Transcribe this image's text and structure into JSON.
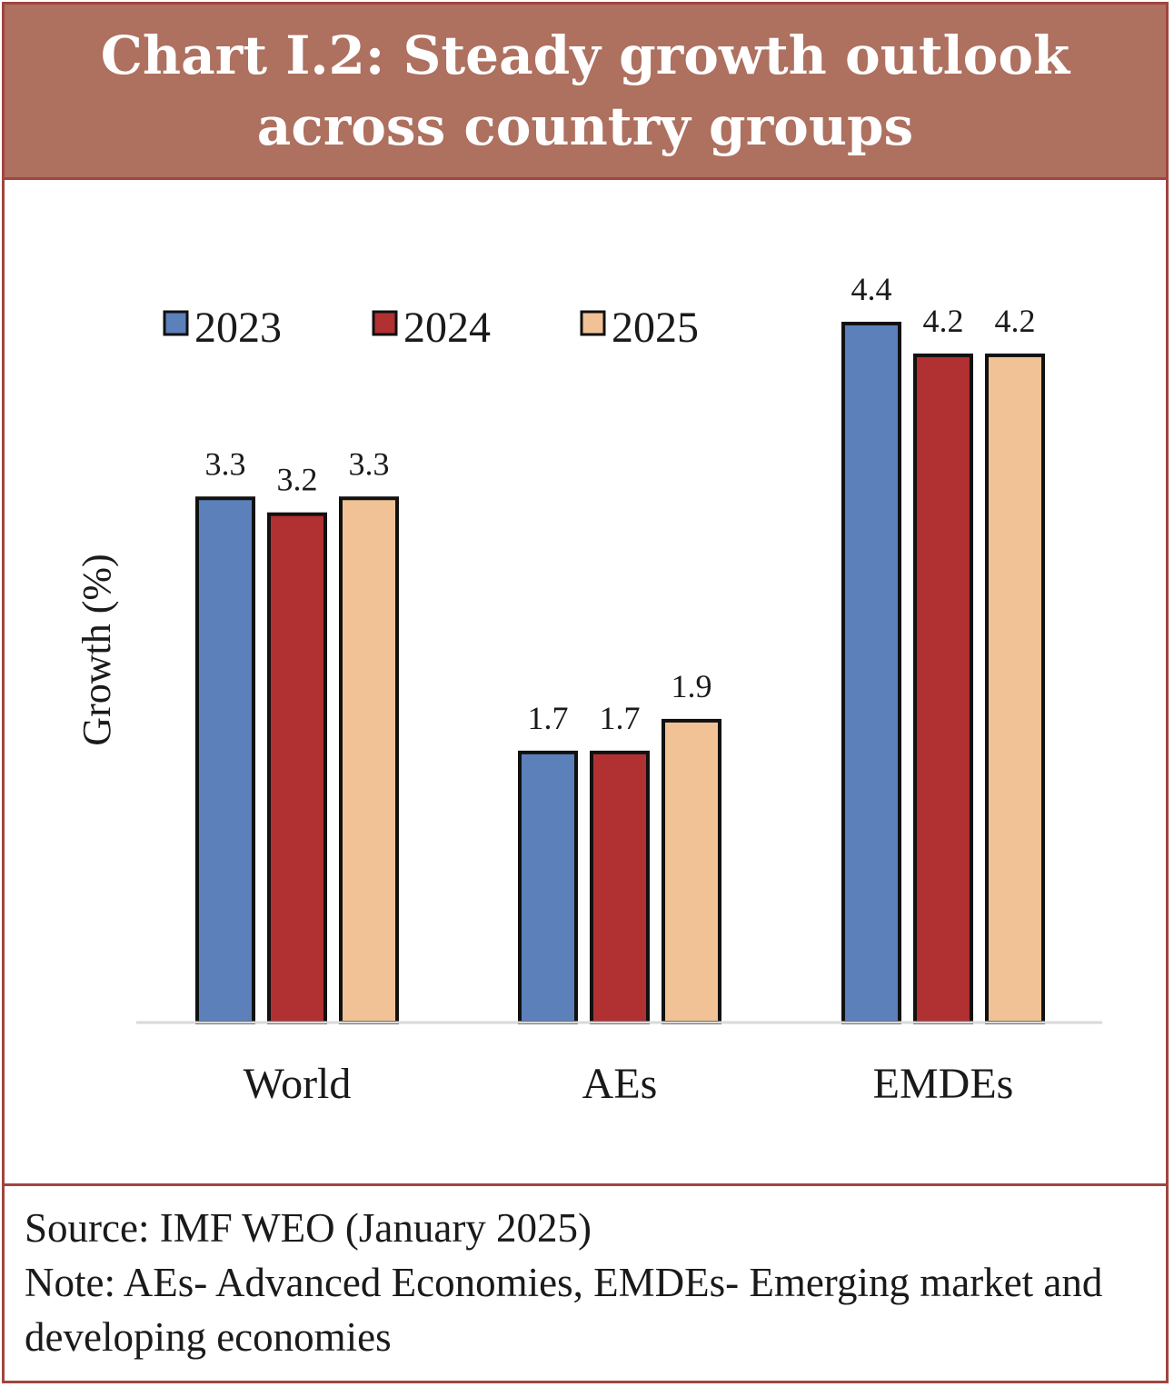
{
  "title": "Chart I.2: Steady growth outlook across country groups",
  "source": "Source: IMF WEO (January 2025)",
  "note": "Note: AEs- Advanced Economies, EMDEs- Emerging market and developing economies",
  "chart_data": {
    "type": "bar",
    "categories": [
      "World",
      "AEs",
      "EMDEs"
    ],
    "series": [
      {
        "name": "2023",
        "values": [
          3.3,
          1.7,
          4.4
        ],
        "color": "#5b80ba"
      },
      {
        "name": "2024",
        "values": [
          3.2,
          1.7,
          4.2
        ],
        "color": "#b13031"
      },
      {
        "name": "2025",
        "values": [
          3.3,
          1.9,
          4.2
        ],
        "color": "#f0c296"
      }
    ],
    "xlabel": "",
    "ylabel": "Growth (%)",
    "ylim": [
      0,
      4.4
    ],
    "grid": false,
    "legend": "top-left",
    "data_labels": true
  }
}
